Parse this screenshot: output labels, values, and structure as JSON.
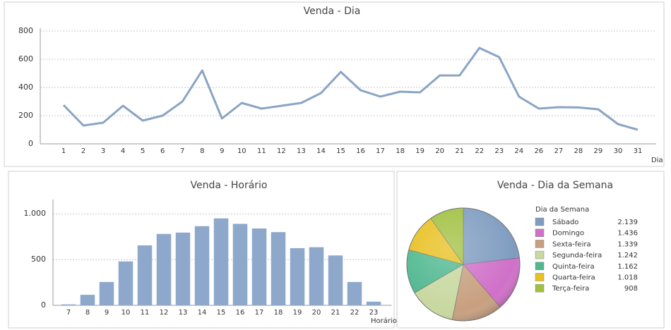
{
  "chart_data": [
    {
      "type": "line",
      "title": "Venda - Dia",
      "x_label": "Dia",
      "categories": [
        "1",
        "2",
        "3",
        "4",
        "5",
        "6",
        "7",
        "8",
        "9",
        "10",
        "11",
        "12",
        "13",
        "14",
        "15",
        "16",
        "17",
        "18",
        "19",
        "20",
        "21",
        "22",
        "23",
        "24",
        "26",
        "27",
        "28",
        "29",
        "30",
        "31"
      ],
      "values": [
        275,
        130,
        150,
        270,
        165,
        200,
        300,
        520,
        180,
        290,
        250,
        270,
        290,
        360,
        510,
        380,
        335,
        370,
        365,
        485,
        485,
        680,
        615,
        335,
        250,
        260,
        258,
        245,
        140,
        100
      ],
      "color": "#8aa4c4",
      "ylim": [
        0,
        800
      ],
      "yticks": [
        0,
        200,
        400,
        600,
        800
      ],
      "grid": true
    },
    {
      "type": "bar",
      "title": "Venda - Horário",
      "x_label": "Horário",
      "categories": [
        "7",
        "8",
        "9",
        "10",
        "11",
        "12",
        "13",
        "14",
        "15",
        "16",
        "17",
        "18",
        "19",
        "20",
        "21",
        "22",
        "23"
      ],
      "values": [
        10,
        115,
        255,
        480,
        655,
        780,
        795,
        865,
        950,
        890,
        840,
        800,
        625,
        635,
        545,
        255,
        40
      ],
      "color": "#8ea8cc",
      "ylim": [
        0,
        1125
      ],
      "yticks": [
        0,
        500,
        {
          "value": 1000,
          "label": "1.000"
        }
      ],
      "grid": true
    },
    {
      "type": "pie",
      "title": "Venda - Dia da Semana",
      "legend_title": "Dia da Semana",
      "categories": [
        "Sábado",
        "Domingo",
        "Sexta-feira",
        "Segunda-feira",
        "Quinta-feira",
        "Quarta-feira",
        "Terça-feira"
      ],
      "values": [
        2139,
        1436,
        1339,
        1242,
        1162,
        1018,
        908
      ],
      "value_labels": [
        "2.139",
        "1.436",
        "1.339",
        "1.242",
        "1.162",
        "1.018",
        "908"
      ],
      "colors": [
        "#7f9cc0",
        "#d070c8",
        "#c8a080",
        "#c8d8a0",
        "#50b890",
        "#e8c020",
        "#a0c040"
      ]
    }
  ]
}
